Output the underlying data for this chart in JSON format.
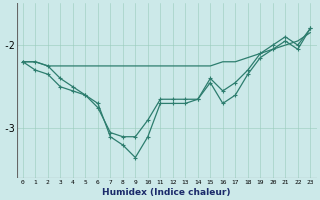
{
  "x": [
    0,
    1,
    2,
    3,
    4,
    5,
    6,
    7,
    8,
    9,
    10,
    11,
    12,
    13,
    14,
    15,
    16,
    17,
    18,
    19,
    20,
    21,
    22,
    23
  ],
  "line1": [
    -2.2,
    -2.2,
    -2.25,
    -2.25,
    -2.25,
    -2.25,
    -2.25,
    -2.25,
    -2.25,
    -2.25,
    -2.25,
    -2.25,
    -2.25,
    -2.25,
    -2.25,
    -2.25,
    -2.2,
    -2.2,
    -2.15,
    -2.1,
    -2.05,
    -2.0,
    -1.95,
    -1.85
  ],
  "line2": [
    -2.2,
    -2.3,
    -2.35,
    -2.5,
    -2.55,
    -2.6,
    -2.75,
    -3.05,
    -3.1,
    -3.1,
    -2.9,
    -2.65,
    -2.65,
    -2.65,
    -2.65,
    -2.4,
    -2.55,
    -2.45,
    -2.3,
    -2.1,
    -2.0,
    -1.9,
    -2.0,
    -1.8
  ],
  "line3": [
    -2.2,
    -2.2,
    -2.25,
    -2.4,
    -2.5,
    -2.6,
    -2.7,
    -3.1,
    -3.2,
    -3.35,
    -3.1,
    -2.7,
    -2.7,
    -2.7,
    -2.65,
    -2.45,
    -2.7,
    -2.6,
    -2.35,
    -2.15,
    -2.05,
    -1.95,
    -2.05,
    -1.8
  ],
  "color": "#2d7d6e",
  "bg_color": "#cce9e9",
  "xlabel": "Humidex (Indice chaleur)",
  "yticks": [
    -3,
    -2
  ],
  "xlim": [
    -0.5,
    23.5
  ],
  "ylim": [
    -3.6,
    -1.5
  ]
}
